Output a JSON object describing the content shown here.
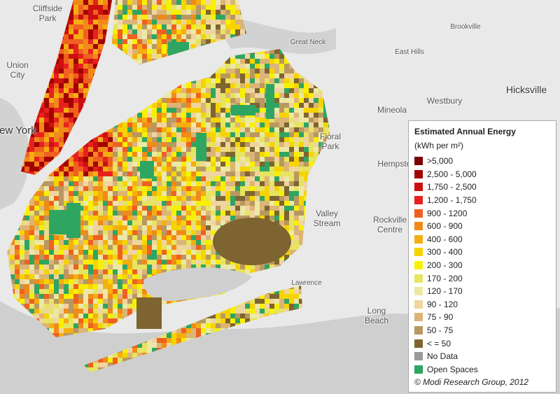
{
  "places": [
    {
      "lines": [
        "Cliffside",
        "Park"
      ]
    },
    {
      "lines": [
        "Union",
        "City"
      ]
    },
    {
      "lines": [
        "New York"
      ]
    },
    {
      "lines": [
        "Great Neck"
      ]
    },
    {
      "lines": [
        "Brookville"
      ]
    },
    {
      "lines": [
        "East Hills"
      ]
    },
    {
      "lines": [
        "Hicksville"
      ]
    },
    {
      "lines": [
        "Westbury"
      ]
    },
    {
      "lines": [
        "Mineola"
      ]
    },
    {
      "lines": [
        "Floral",
        "Park"
      ]
    },
    {
      "lines": [
        "Hempstead"
      ]
    },
    {
      "lines": [
        "Valley",
        "Stream"
      ]
    },
    {
      "lines": [
        "Rockville",
        "Centre"
      ]
    },
    {
      "lines": [
        "Lawrence"
      ]
    },
    {
      "lines": [
        "Long",
        "Beach"
      ]
    }
  ],
  "legend": {
    "title": "Estimated Annual Energy",
    "subtitle": "(kWh per m²)",
    "items": [
      {
        "label": ">5,000",
        "color": "#7a0000"
      },
      {
        "label": "2,500 - 5,000",
        "color": "#a30000"
      },
      {
        "label": "1,750 - 2,500",
        "color": "#cc1010"
      },
      {
        "label": "1,200 - 1,750",
        "color": "#e82020"
      },
      {
        "label": "900 - 1200",
        "color": "#f06020"
      },
      {
        "label": "600 - 900",
        "color": "#f08a18"
      },
      {
        "label": "400 - 600",
        "color": "#f4ae10"
      },
      {
        "label": "300 - 400",
        "color": "#f6d400"
      },
      {
        "label": "200 - 300",
        "color": "#f8f000"
      },
      {
        "label": "170 - 200",
        "color": "#e6e460"
      },
      {
        "label": "120 - 170",
        "color": "#ece8a6"
      },
      {
        "label": "90 - 120",
        "color": "#f0d4a0"
      },
      {
        "label": "75 - 90",
        "color": "#dcb478"
      },
      {
        "label": "50 - 75",
        "color": "#b89860"
      },
      {
        "label": "< = 50",
        "color": "#7e6430"
      },
      {
        "label": "No Data",
        "color": "#9a9a9a"
      },
      {
        "label": "Open Spaces",
        "color": "#2fa562"
      }
    ],
    "credit": "© Modi Research Group, 2012"
  }
}
